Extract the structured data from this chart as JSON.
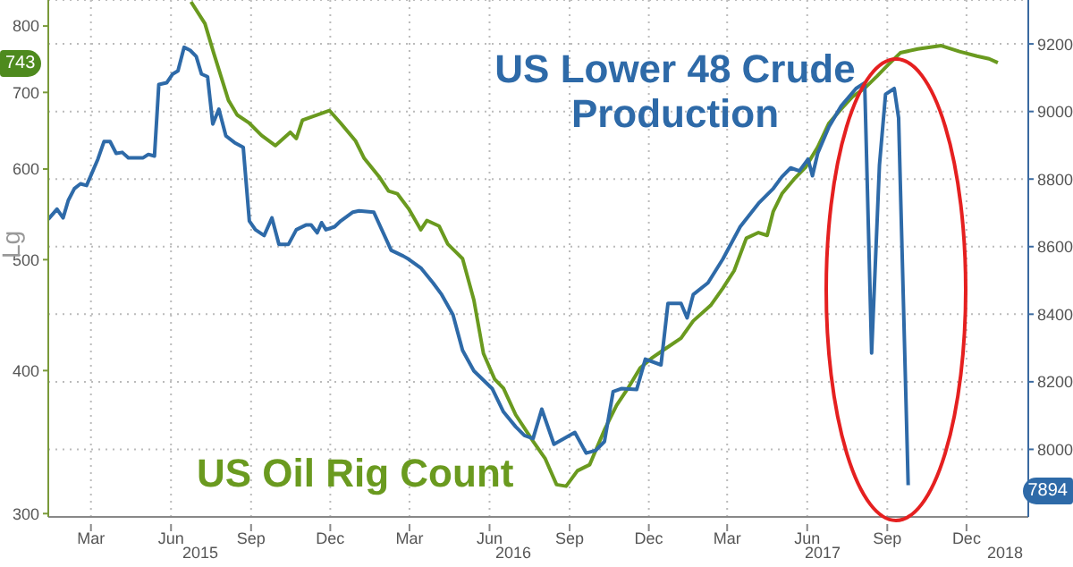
{
  "chart_data": {
    "type": "line",
    "ylabel": "Lg",
    "log": "y",
    "grid": true,
    "xlim": [
      "2015-01-25",
      "2018-02-24"
    ],
    "xticks": [
      {
        "value": "2015-03-15",
        "label": "Mar"
      },
      {
        "value": "2015-06-15",
        "label": "Jun"
      },
      {
        "value": "2015-09-15",
        "label": "Sep"
      },
      {
        "value": "2015-12-15",
        "label": "Dec"
      },
      {
        "value": "2016-03-15",
        "label": "Mar"
      },
      {
        "value": "2016-06-15",
        "label": "Jun"
      },
      {
        "value": "2016-09-15",
        "label": "Sep"
      },
      {
        "value": "2016-12-15",
        "label": "Dec"
      },
      {
        "value": "2017-03-15",
        "label": "Mar"
      },
      {
        "value": "2017-06-15",
        "label": "Jun"
      },
      {
        "value": "2017-09-15",
        "label": "Sep"
      },
      {
        "value": "2017-12-15",
        "label": "Dec"
      }
    ],
    "ylim": [
      298,
      843
    ],
    "yticks": [
      300,
      400,
      500,
      600,
      700,
      800
    ],
    "y2lim": [
      7800,
      9330
    ],
    "y2ticks": [
      8000,
      8200,
      8400,
      8600,
      8800,
      9000,
      9200
    ],
    "annotations": [
      "743",
      "7894",
      "2015",
      "2016",
      "2017",
      "2018"
    ],
    "series": [
      {
        "name": "US Oil Rig Count",
        "color": "#6a9a1f",
        "x": [
          "2015-07-08",
          "2015-07-24",
          "2015-08-03",
          "2015-08-20",
          "2015-08-30",
          "2015-09-13",
          "2015-09-27",
          "2015-10-13",
          "2015-10-30",
          "2015-11-06",
          "2015-11-13",
          "2015-12-14",
          "2015-12-27",
          "2016-01-13",
          "2016-01-23",
          "2016-02-09",
          "2016-02-20",
          "2016-03-01",
          "2016-03-14",
          "2016-03-28",
          "2016-04-04",
          "2016-04-18",
          "2016-04-28",
          "2016-05-15",
          "2016-05-28",
          "2016-06-08",
          "2016-06-21",
          "2016-07-01",
          "2016-07-15",
          "2016-08-04",
          "2016-08-18",
          "2016-08-31",
          "2016-09-11",
          "2016-09-24",
          "2016-10-08",
          "2016-10-25",
          "2016-11-08",
          "2016-11-21",
          "2016-12-05",
          "2016-12-18",
          "2017-01-01",
          "2017-01-21",
          "2017-02-04",
          "2017-02-24",
          "2017-03-10",
          "2017-03-23",
          "2017-04-06",
          "2017-04-20",
          "2017-04-30",
          "2017-05-07",
          "2017-05-17",
          "2017-05-31",
          "2017-06-13",
          "2017-06-27",
          "2017-07-10",
          "2017-07-24",
          "2017-08-06",
          "2017-08-20",
          "2017-09-03",
          "2017-09-16",
          "2017-09-30",
          "2017-10-20",
          "2017-11-16",
          "2017-12-07",
          "2017-12-27",
          "2018-01-10",
          "2018-01-20"
        ],
        "values": [
          840,
          804,
          758,
          689,
          669,
          658,
          642,
          629,
          646,
          638,
          662,
          675,
          658,
          635,
          613,
          591,
          574,
          571,
          554,
          531,
          541,
          535,
          516,
          501,
          461,
          414,
          393,
          386,
          366,
          347,
          335,
          318,
          317,
          327,
          331,
          355,
          373,
          386,
          402,
          410,
          417,
          427,
          442,
          456,
          472,
          489,
          522,
          528,
          525,
          551,
          571,
          588,
          602,
          627,
          658,
          677,
          694,
          706,
          723,
          740,
          758,
          764,
          769,
          760,
          753,
          749,
          743
        ]
      },
      {
        "name": "US Lower 48 Crude Production",
        "color": "#2e6aa8",
        "axis": "y2",
        "x": [
          "2015-01-25",
          "2015-02-04",
          "2015-02-11",
          "2015-02-17",
          "2015-02-24",
          "2015-03-03",
          "2015-03-10",
          "2015-03-23",
          "2015-03-30",
          "2015-04-06",
          "2015-04-13",
          "2015-04-20",
          "2015-04-27",
          "2015-05-14",
          "2015-05-20",
          "2015-05-27",
          "2015-06-01",
          "2015-06-10",
          "2015-06-17",
          "2015-06-23",
          "2015-06-30",
          "2015-07-07",
          "2015-07-14",
          "2015-07-20",
          "2015-07-27",
          "2015-08-02",
          "2015-08-09",
          "2015-08-17",
          "2015-08-27",
          "2015-09-06",
          "2015-09-13",
          "2015-09-20",
          "2015-09-30",
          "2015-10-09",
          "2015-10-17",
          "2015-10-28",
          "2015-11-06",
          "2015-11-17",
          "2015-11-23",
          "2015-11-30",
          "2015-12-05",
          "2015-12-10",
          "2015-12-20",
          "2015-12-27",
          "2016-01-10",
          "2016-01-17",
          "2016-02-03",
          "2016-02-23",
          "2016-03-08",
          "2016-03-14",
          "2016-03-28",
          "2016-04-11",
          "2016-04-21",
          "2016-05-04",
          "2016-05-15",
          "2016-05-28",
          "2016-06-18",
          "2016-07-01",
          "2016-07-15",
          "2016-07-25",
          "2016-08-04",
          "2016-08-14",
          "2016-08-28",
          "2016-09-21",
          "2016-10-04",
          "2016-10-15",
          "2016-10-25",
          "2016-11-04",
          "2016-11-14",
          "2016-12-01",
          "2016-12-11",
          "2016-12-29",
          "2017-01-06",
          "2017-01-21",
          "2017-01-28",
          "2017-02-04",
          "2017-02-21",
          "2017-03-10",
          "2017-03-30",
          "2017-04-20",
          "2017-05-07",
          "2017-05-17",
          "2017-05-27",
          "2017-06-06",
          "2017-06-16",
          "2017-06-21",
          "2017-06-27",
          "2017-07-10",
          "2017-07-24",
          "2017-08-10",
          "2017-08-20",
          "2017-08-28",
          "2017-09-06",
          "2017-09-13",
          "2017-09-23",
          "2017-09-28",
          "2017-10-09"
        ],
        "values": [
          8681,
          8711,
          8685,
          8737,
          8772,
          8786,
          8781,
          8859,
          8911,
          8911,
          8876,
          8879,
          8863,
          8863,
          8873,
          8868,
          9080,
          9085,
          9111,
          9120,
          9190,
          9181,
          9163,
          9111,
          9103,
          8963,
          9007,
          8928,
          8908,
          8894,
          8676,
          8650,
          8633,
          8685,
          8607,
          8607,
          8650,
          8664,
          8664,
          8641,
          8671,
          8650,
          8659,
          8676,
          8702,
          8706,
          8702,
          8589,
          8572,
          8563,
          8537,
          8493,
          8458,
          8398,
          8293,
          8232,
          8180,
          8111,
          8067,
          8041,
          8032,
          8119,
          8015,
          8050,
          7989,
          7997,
          8023,
          8171,
          8180,
          8177,
          8267,
          8250,
          8432,
          8432,
          8389,
          8458,
          8493,
          8563,
          8659,
          8728,
          8772,
          8807,
          8833,
          8824,
          8859,
          8810,
          8876,
          8955,
          9016,
          9068,
          9085,
          8285,
          8842,
          9051,
          9068,
          8981,
          7894
        ]
      }
    ]
  }
}
